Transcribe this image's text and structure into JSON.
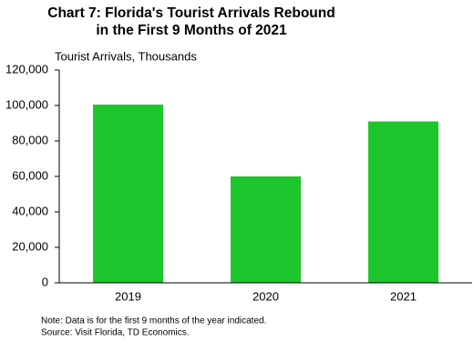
{
  "chart_data": {
    "type": "bar",
    "title": "Chart 7: Florida's Tourist Arrivals Rebound in the First 9 Months of 2021",
    "y_axis_label": "Tourist Arrivals, Thousands",
    "categories": [
      "2019",
      "2020",
      "2021"
    ],
    "values": [
      100500,
      60000,
      91000
    ],
    "color": "#1ec62e",
    "ylim": [
      0,
      120000
    ],
    "yticks": [
      0,
      {
        "value": 20000,
        "label": "20,000"
      },
      {
        "value": 40000,
        "label": "40,000"
      },
      {
        "value": 60000,
        "label": "60,000"
      },
      {
        "value": 80000,
        "label": "80,000"
      },
      {
        "value": 100000,
        "label": "100,000"
      },
      {
        "value": 120000,
        "label": "120,000"
      }
    ],
    "grid": false,
    "notes": [
      "Note:  Data  is for the  first 9 months  of the year indicated.",
      "Source:  Visit Florida,  TD Economics."
    ]
  }
}
